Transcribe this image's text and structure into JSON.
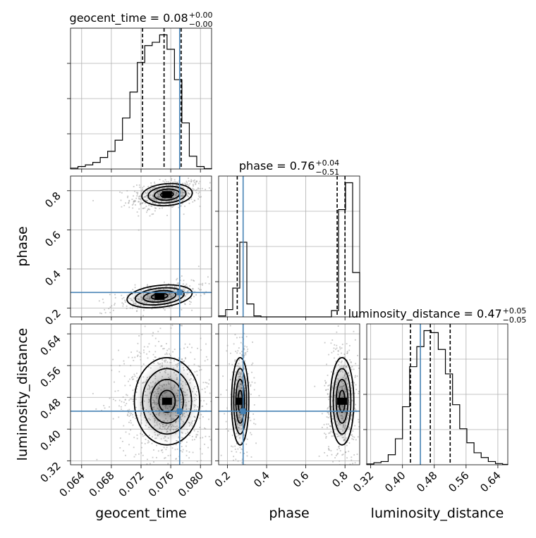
{
  "chart_data": {
    "type": "corner",
    "parameters": [
      "geocent_time",
      "phase",
      "luminosity_distance"
    ],
    "truths": {
      "geocent_time": 0.0772,
      "phase": 0.28,
      "luminosity_distance": 0.445
    },
    "colors": {
      "truth": "#4682b4",
      "hist": "#000000",
      "grid": "#b0b0b0",
      "scatter": "#9a9a9a"
    },
    "grid": true,
    "titles": [
      {
        "param": "geocent_time",
        "text": "geocent_time = 0.08",
        "sup": "+0.00",
        "sub": "−0.00"
      },
      {
        "param": "phase",
        "text": "phase = 0.76",
        "sup": "+0.04",
        "sub": "−0.51"
      },
      {
        "param": "luminosity_distance",
        "text": "luminosity_distance = 0.47",
        "sup": "+0.05",
        "sub": "−0.05"
      }
    ],
    "axis_labels": {
      "x": [
        "geocent_time",
        "phase",
        "luminosity_distance"
      ],
      "y": [
        "phase",
        "luminosity_distance"
      ]
    },
    "ranges": {
      "geocent_time": [
        0.0625,
        0.0815
      ],
      "phase": [
        0.155,
        0.875
      ],
      "luminosity_distance": [
        0.31,
        0.665
      ]
    },
    "ticks": {
      "geocent_time": [
        "0.064",
        "0.068",
        "0.072",
        "0.076",
        "0.080"
      ],
      "phase_x": [
        "0.2",
        "0.4",
        "0.6",
        "0.8"
      ],
      "phase_y": [
        "0.2",
        "0.4",
        "0.6",
        "0.8"
      ],
      "luminosity_distance": [
        "0.32",
        "0.40",
        "0.48",
        "0.56",
        "0.64"
      ]
    },
    "quantiles": {
      "geocent_time": [
        0.0722,
        0.0751,
        0.0774
      ],
      "phase": [
        0.25,
        0.76,
        0.8
      ],
      "luminosity_distance": [
        0.42,
        0.47,
        0.52
      ]
    },
    "histograms": {
      "geocent_time": {
        "edges": [
          0.0625,
          0.0635,
          0.0645,
          0.0655,
          0.0665,
          0.0675,
          0.0685,
          0.0695,
          0.0705,
          0.0715,
          0.0725,
          0.0735,
          0.0745,
          0.0755,
          0.0765,
          0.0775,
          0.0785,
          0.0795,
          0.0805,
          0.0815
        ],
        "counts": [
          2,
          6,
          10,
          16,
          28,
          43,
          70,
          124,
          187,
          259,
          300,
          308,
          326,
          291,
          217,
          112,
          31,
          6,
          1
        ]
      },
      "phase": {
        "edges": [
          0.155,
          0.191,
          0.227,
          0.263,
          0.299,
          0.335,
          0.371,
          0.407,
          0.443,
          0.479,
          0.515,
          0.551,
          0.587,
          0.623,
          0.659,
          0.695,
          0.731,
          0.767,
          0.803,
          0.839,
          0.875
        ],
        "counts": [
          4,
          30,
          118,
          306,
          53,
          4,
          0,
          0,
          0,
          0,
          0,
          0,
          0,
          0,
          0,
          0,
          26,
          440,
          550,
          182
        ]
      },
      "luminosity_distance": {
        "edges": [
          0.31,
          0.328,
          0.346,
          0.364,
          0.382,
          0.4,
          0.418,
          0.436,
          0.454,
          0.472,
          0.49,
          0.508,
          0.526,
          0.544,
          0.562,
          0.58,
          0.598,
          0.616,
          0.634,
          0.652,
          0.665
        ],
        "counts": [
          2,
          5,
          8,
          25,
          65,
          145,
          245,
          295,
          335,
          330,
          288,
          227,
          150,
          90,
          55,
          30,
          18,
          8,
          3,
          1
        ]
      }
    }
  }
}
